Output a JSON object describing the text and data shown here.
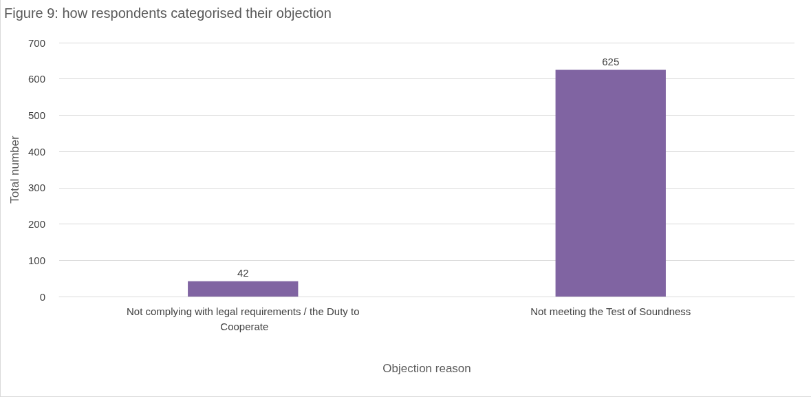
{
  "chart_data": {
    "type": "bar",
    "title": "Figure 9: how respondents categorised their objection",
    "xlabel": "Objection reason",
    "ylabel": "Total number",
    "categories": [
      "Not complying with legal requirements / the Duty to Cooperate",
      "Not meeting the Test of Soundness"
    ],
    "values": [
      42,
      625
    ],
    "color": "#8064a2",
    "data_labels": true,
    "ylim": [
      0,
      700
    ],
    "yticks": [
      0,
      100,
      200,
      300,
      400,
      500,
      600,
      700
    ],
    "grid": "y"
  }
}
